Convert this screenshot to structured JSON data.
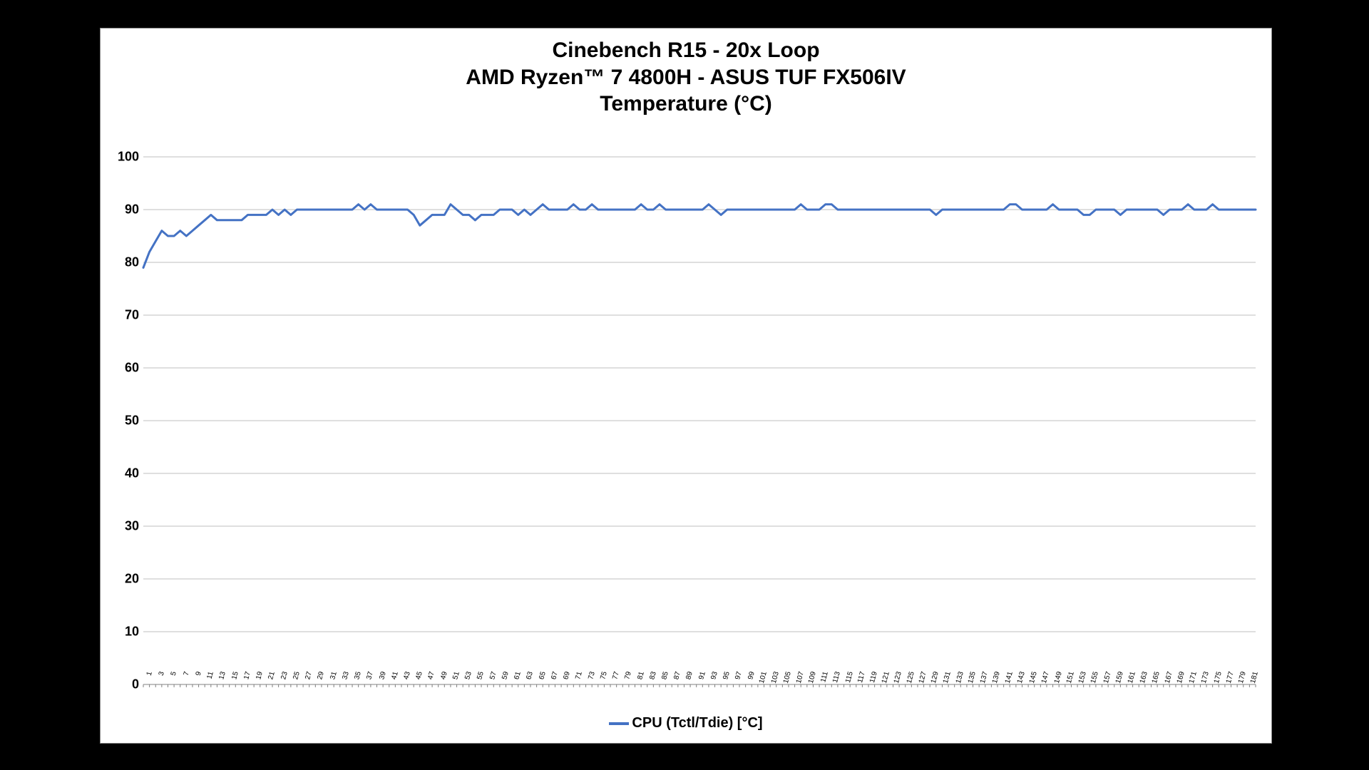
{
  "background_color": "#000000",
  "panel": {
    "background_color": "#ffffff",
    "border_color": "#888888"
  },
  "title": {
    "line1": "Cinebench R15 - 20x Loop",
    "line2": "AMD Ryzen™ 7 4800H - ASUS TUF FX506IV",
    "line3": "Temperature (°C)",
    "fontsize": 30,
    "font_weight": 700,
    "color": "#000000"
  },
  "chart": {
    "type": "line",
    "line_color": "#4472c4",
    "line_width": 3,
    "grid_color": "#bfbfbf",
    "axis_color": "#808080",
    "tick_color": "#808080",
    "ylim": [
      0,
      100
    ],
    "ytick_step": 10,
    "yticks": [
      0,
      10,
      20,
      30,
      40,
      50,
      60,
      70,
      80,
      90,
      100
    ],
    "ytick_fontsize": 18,
    "xtick_fontsize": 10,
    "xtick_rotation": -75,
    "xtick_step_label": 2,
    "x_count": 182,
    "x_start": 1,
    "values": [
      79,
      82,
      84,
      86,
      85,
      85,
      86,
      85,
      86,
      87,
      88,
      89,
      88,
      88,
      88,
      88,
      88,
      89,
      89,
      89,
      89,
      90,
      89,
      90,
      89,
      90,
      90,
      90,
      90,
      90,
      90,
      90,
      90,
      90,
      90,
      91,
      90,
      91,
      90,
      90,
      90,
      90,
      90,
      90,
      89,
      87,
      88,
      89,
      89,
      89,
      91,
      90,
      89,
      89,
      88,
      89,
      89,
      89,
      90,
      90,
      90,
      89,
      90,
      89,
      90,
      91,
      90,
      90,
      90,
      90,
      91,
      90,
      90,
      91,
      90,
      90,
      90,
      90,
      90,
      90,
      90,
      91,
      90,
      90,
      91,
      90,
      90,
      90,
      90,
      90,
      90,
      90,
      91,
      90,
      89,
      90,
      90,
      90,
      90,
      90,
      90,
      90,
      90,
      90,
      90,
      90,
      90,
      91,
      90,
      90,
      90,
      91,
      91,
      90,
      90,
      90,
      90,
      90,
      90,
      90,
      90,
      90,
      90,
      90,
      90,
      90,
      90,
      90,
      90,
      89,
      90,
      90,
      90,
      90,
      90,
      90,
      90,
      90,
      90,
      90,
      90,
      91,
      91,
      90,
      90,
      90,
      90,
      90,
      91,
      90,
      90,
      90,
      90,
      89,
      89,
      90,
      90,
      90,
      90,
      89,
      90,
      90,
      90,
      90,
      90,
      90,
      89,
      90,
      90,
      90,
      91,
      90,
      90,
      90,
      91,
      90,
      90,
      90,
      90,
      90,
      90,
      90
    ]
  },
  "legend": {
    "label": "CPU (Tctl/Tdie) [°C]",
    "color": "#4472c4",
    "fontsize": 20
  }
}
